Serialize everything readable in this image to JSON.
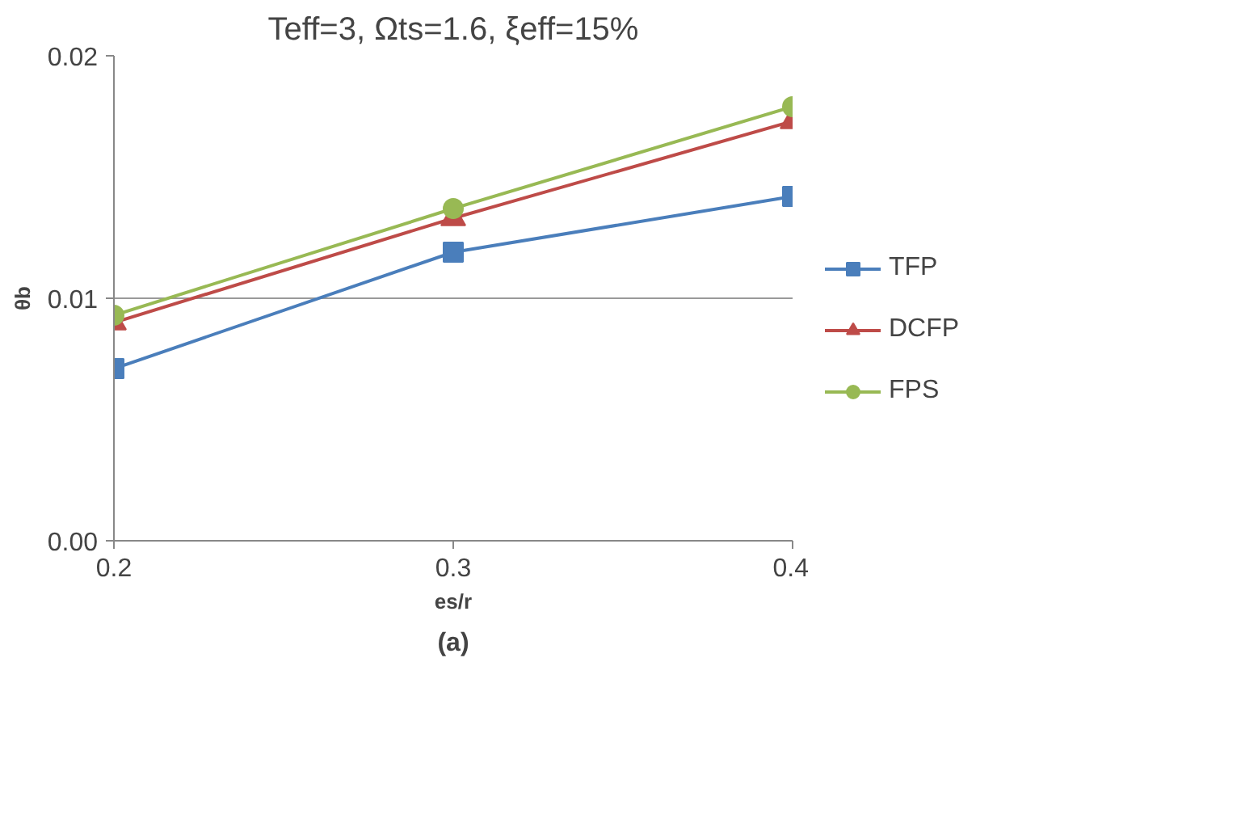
{
  "chart_data": {
    "type": "line",
    "title": "Teff=3, Ωts=1.6, ξeff=15%",
    "xlabel": "es/r",
    "ylabel": "θb",
    "annotations": [
      "(a)"
    ],
    "x": [
      0.2,
      0.3,
      0.4
    ],
    "series": [
      {
        "name": "TFP",
        "color": "#4a7ebb",
        "marker": "square",
        "values": [
          0.0071,
          0.0119,
          0.0142
        ]
      },
      {
        "name": "DCFP",
        "color": "#be4b48",
        "marker": "triangle",
        "values": [
          0.009,
          0.0133,
          0.0173
        ]
      },
      {
        "name": "FPS",
        "color": "#98b954",
        "marker": "circle",
        "values": [
          0.0093,
          0.0137,
          0.0179
        ]
      }
    ],
    "xlim": [
      0.2,
      0.4
    ],
    "xticks": [
      0.2,
      0.3,
      0.4
    ],
    "ylim": [
      0,
      0.02
    ],
    "yticks": [
      {
        "value": 0,
        "label": "0.00"
      },
      {
        "value": 0.01,
        "label": "0.01"
      },
      {
        "value": 0.02,
        "label": "0.02"
      }
    ],
    "grid": "y",
    "legend": "right",
    "line_style": "solid"
  }
}
